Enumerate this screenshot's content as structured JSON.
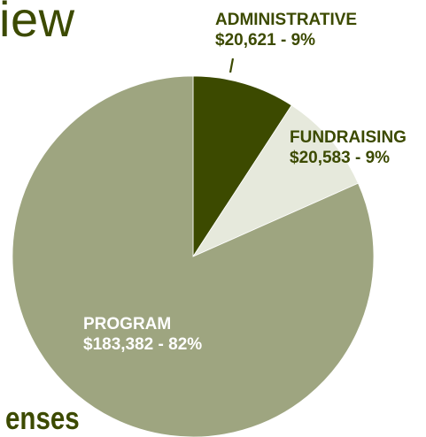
{
  "page": {
    "title_fragment": "iew",
    "subtitle_fragment": "enses"
  },
  "chart_data": {
    "type": "pie",
    "categories": [
      "ADMINISTRATIVE",
      "FUNDRAISING",
      "PROGRAM"
    ],
    "values": [
      20621,
      20583,
      183382
    ],
    "slices": [
      {
        "name": "ADMINISTRATIVE",
        "value": 20621,
        "label_value": "$20,621 - 9%",
        "color": "#3c4a00"
      },
      {
        "name": "FUNDRAISING",
        "value": 20583,
        "label_value": "$20,583 - 9%",
        "color": "#e6e9dc"
      },
      {
        "name": "PROGRAM",
        "value": 183382,
        "label_value": "$183,382 - 82%",
        "color": "#9ea580"
      }
    ],
    "title": "",
    "legend": "none"
  }
}
